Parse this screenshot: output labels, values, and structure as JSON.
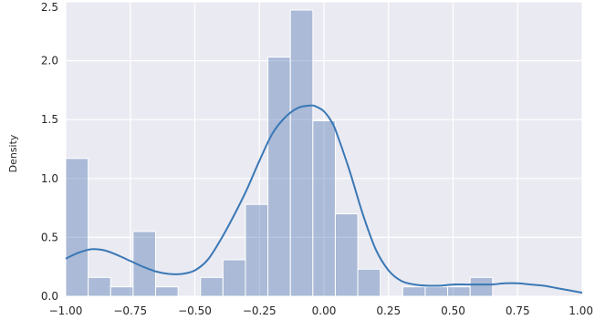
{
  "chart_data": {
    "type": "histogram",
    "title": "",
    "xlabel": "",
    "ylabel": "Density",
    "xlim": [
      -1.0,
      1.0
    ],
    "ylim": [
      0.0,
      2.5
    ],
    "grid": true,
    "background_color": "#eaeaf2",
    "grid_color": "#ffffff",
    "bar_color": "#4c72b0",
    "kde_color": "#3a78b5",
    "x_ticks": [
      -1.0,
      -0.75,
      -0.5,
      -0.25,
      0.0,
      0.25,
      0.5,
      0.75,
      1.0
    ],
    "x_tick_labels": [
      "-1.00",
      "-0.75",
      "-0.50",
      "-0.25",
      "0.00",
      "0.25",
      "0.50",
      "0.75",
      "1.00"
    ],
    "y_ticks": [
      0.0,
      0.5,
      1.0,
      1.5,
      2.0,
      2.5
    ],
    "y_tick_labels": [
      "0.0",
      "0.5",
      "1.0",
      "1.5",
      "2.0",
      "2.5"
    ],
    "bins": [
      {
        "x0": -1.0,
        "x1": -0.913,
        "density": 1.17
      },
      {
        "x0": -0.913,
        "x1": -0.826,
        "density": 0.16
      },
      {
        "x0": -0.826,
        "x1": -0.739,
        "density": 0.08
      },
      {
        "x0": -0.739,
        "x1": -0.652,
        "density": 0.55
      },
      {
        "x0": -0.652,
        "x1": -0.565,
        "density": 0.08
      },
      {
        "x0": -0.565,
        "x1": -0.478,
        "density": 0.0
      },
      {
        "x0": -0.478,
        "x1": -0.391,
        "density": 0.16
      },
      {
        "x0": -0.391,
        "x1": -0.304,
        "density": 0.31
      },
      {
        "x0": -0.304,
        "x1": -0.217,
        "density": 0.78
      },
      {
        "x0": -0.217,
        "x1": -0.13,
        "density": 2.03
      },
      {
        "x0": -0.13,
        "x1": -0.043,
        "density": 2.43
      },
      {
        "x0": -0.043,
        "x1": 0.044,
        "density": 1.49
      },
      {
        "x0": 0.044,
        "x1": 0.131,
        "density": 0.7
      },
      {
        "x0": 0.131,
        "x1": 0.218,
        "density": 0.23
      },
      {
        "x0": 0.218,
        "x1": 0.305,
        "density": 0.0
      },
      {
        "x0": 0.305,
        "x1": 0.392,
        "density": 0.08
      },
      {
        "x0": 0.392,
        "x1": 0.479,
        "density": 0.08
      },
      {
        "x0": 0.479,
        "x1": 0.566,
        "density": 0.08
      },
      {
        "x0": 0.566,
        "x1": 0.653,
        "density": 0.16
      },
      {
        "x0": 0.653,
        "x1": 0.74,
        "density": 0.0
      },
      {
        "x0": 0.74,
        "x1": 0.827,
        "density": 0.0
      },
      {
        "x0": 0.827,
        "x1": 0.914,
        "density": 0.0
      },
      {
        "x0": 0.914,
        "x1": 1.0,
        "density": 0.0
      }
    ],
    "kde": {
      "x": [
        -1.0,
        -0.95,
        -0.9,
        -0.85,
        -0.8,
        -0.75,
        -0.7,
        -0.65,
        -0.6,
        -0.55,
        -0.5,
        -0.45,
        -0.4,
        -0.35,
        -0.3,
        -0.25,
        -0.2,
        -0.15,
        -0.1,
        -0.05,
        -0.03,
        0.0,
        0.03,
        0.05,
        0.1,
        0.15,
        0.2,
        0.25,
        0.3,
        0.35,
        0.4,
        0.45,
        0.5,
        0.55,
        0.6,
        0.65,
        0.7,
        0.75,
        0.8,
        0.85,
        0.9,
        0.95,
        1.0
      ],
      "y": [
        0.32,
        0.37,
        0.4,
        0.39,
        0.35,
        0.3,
        0.25,
        0.21,
        0.19,
        0.19,
        0.22,
        0.31,
        0.48,
        0.68,
        0.9,
        1.15,
        1.38,
        1.52,
        1.6,
        1.62,
        1.61,
        1.57,
        1.48,
        1.38,
        1.06,
        0.7,
        0.4,
        0.22,
        0.13,
        0.1,
        0.09,
        0.09,
        0.1,
        0.1,
        0.1,
        0.1,
        0.11,
        0.11,
        0.1,
        0.09,
        0.07,
        0.05,
        0.03
      ]
    }
  }
}
